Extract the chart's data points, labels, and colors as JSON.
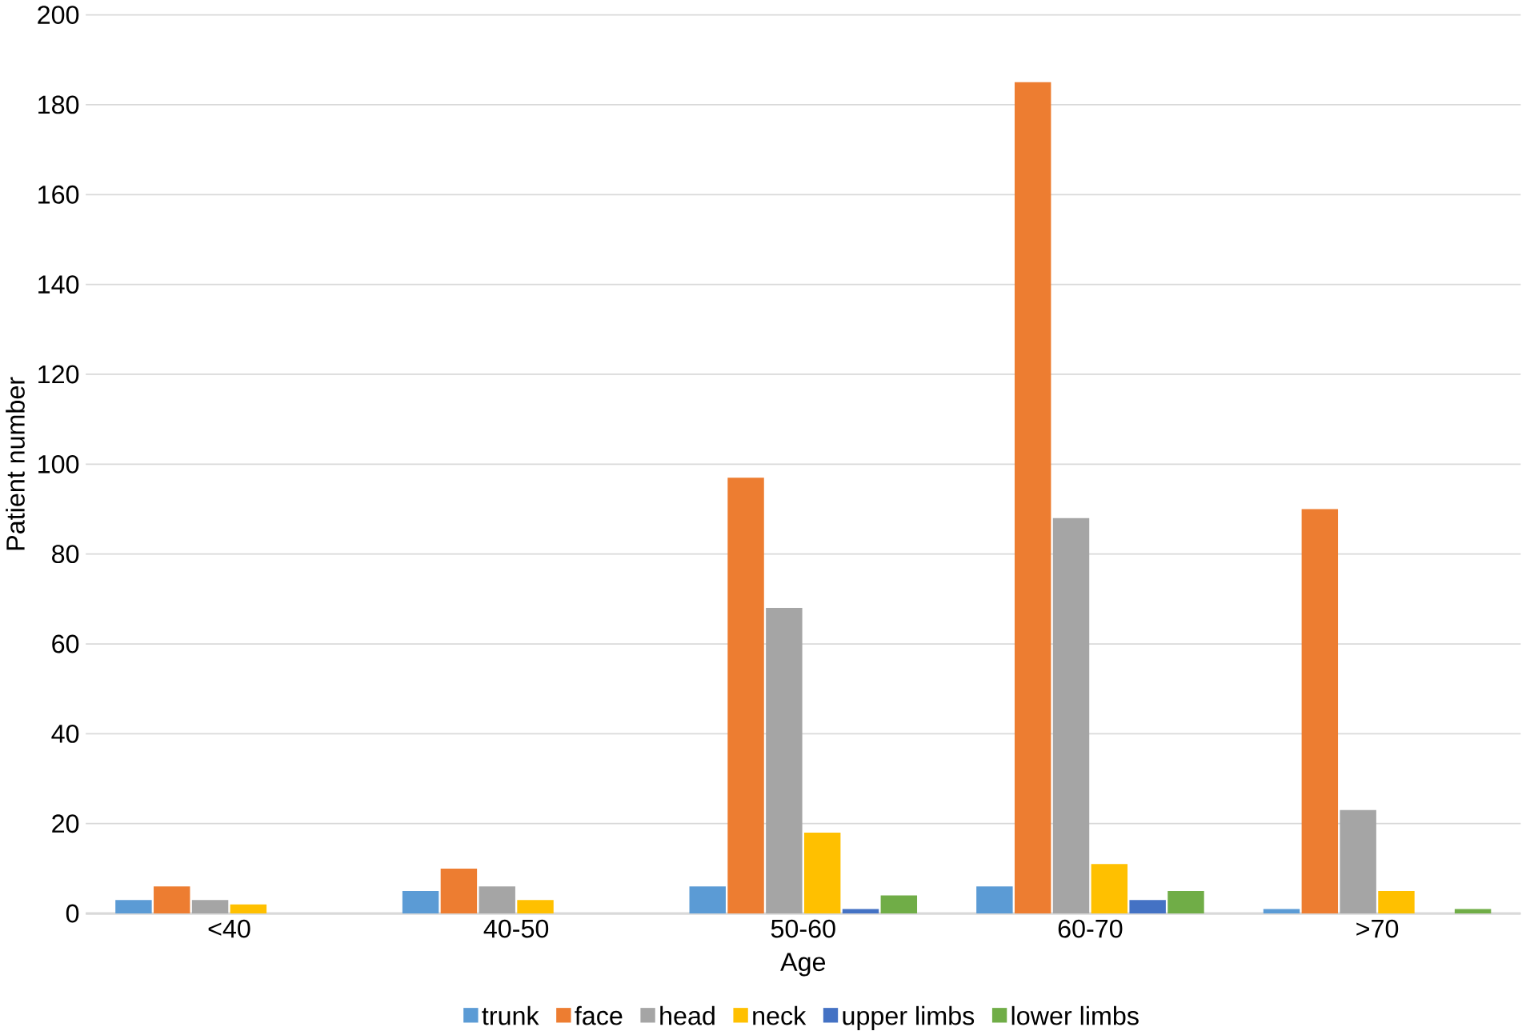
{
  "chart_data": {
    "type": "bar",
    "xlabel": "Age",
    "ylabel": "Patient number",
    "categories": [
      "<40",
      "40-50",
      "50-60",
      "60-70",
      ">70"
    ],
    "series": [
      {
        "name": "trunk",
        "color": "#5b9bd5",
        "values": [
          3,
          5,
          6,
          6,
          1
        ]
      },
      {
        "name": "face",
        "color": "#ed7d31",
        "values": [
          6,
          10,
          97,
          185,
          90
        ]
      },
      {
        "name": "head",
        "color": "#a5a5a5",
        "values": [
          3,
          6,
          68,
          88,
          23
        ]
      },
      {
        "name": "neck",
        "color": "#ffc000",
        "values": [
          2,
          3,
          18,
          11,
          5
        ]
      },
      {
        "name": "upper limbs",
        "color": "#4472c4",
        "values": [
          0,
          0,
          1,
          3,
          0
        ]
      },
      {
        "name": "lower limbs",
        "color": "#70ad47",
        "values": [
          0,
          0,
          4,
          5,
          1
        ]
      }
    ],
    "ylim": [
      0,
      200
    ],
    "yticks": [
      0,
      20,
      40,
      60,
      80,
      100,
      120,
      140,
      160,
      180,
      200
    ],
    "grid": "y",
    "legend": "bottom"
  }
}
